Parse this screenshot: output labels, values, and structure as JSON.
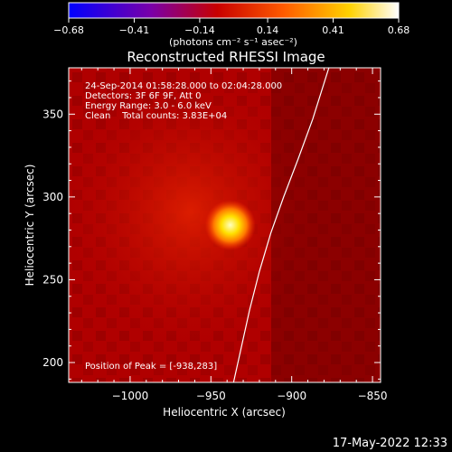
{
  "chart_data": {
    "type": "heatmap",
    "title": "Reconstructed RHESSI Image",
    "xlabel": "Heliocentric X (arcsec)",
    "ylabel": "Heliocentric Y (arcsec)",
    "xlim": [
      -1038,
      -845
    ],
    "ylim": [
      188,
      378
    ],
    "x_ticks": [
      -1000,
      -950,
      -900,
      -850
    ],
    "x_tick_labels": [
      "−1000",
      "−950",
      "−900",
      "−850"
    ],
    "y_ticks": [
      200,
      250,
      300,
      350
    ],
    "y_tick_labels": [
      "200",
      "250",
      "300",
      "350"
    ],
    "colorbar": {
      "range": [
        -0.68,
        0.68
      ],
      "ticks": [
        -0.68,
        -0.41,
        -0.14,
        0.14,
        0.41,
        0.68
      ],
      "tick_labels": [
        "−0.68",
        "−0.41",
        "−0.14",
        "0.14",
        "0.41",
        "0.68"
      ],
      "colors": [
        "#0000ff",
        "#7a00a8",
        "#c80000",
        "#ff5a00",
        "#ffd200",
        "#ffffff"
      ],
      "unit": "(photons cm⁻² s⁻¹ asec⁻²)"
    },
    "annotations": [
      "24-Sep-2014 01:58:28.000 to 02:04:28.000",
      "Detectors: 3F 6F 9F, Att 0",
      "Energy Range: 3.0 - 6.0 keV",
      "Clean    Total counts: 3.83E+04"
    ],
    "peak_label": "Position of Peak = [-938,283]",
    "peak": {
      "x": -938,
      "y": 283
    },
    "limb": [
      {
        "x": -936,
        "y": 188
      },
      {
        "x": -931,
        "y": 210
      },
      {
        "x": -926,
        "y": 232
      },
      {
        "x": -920,
        "y": 255
      },
      {
        "x": -913,
        "y": 278
      },
      {
        "x": -905,
        "y": 300
      },
      {
        "x": -896,
        "y": 323
      },
      {
        "x": -887,
        "y": 347
      },
      {
        "x": -877,
        "y": 378
      }
    ],
    "background_color": "#b00000",
    "limb_color": "#ffffff"
  },
  "footer": {
    "timestamp": "17-May-2022 12:33"
  }
}
